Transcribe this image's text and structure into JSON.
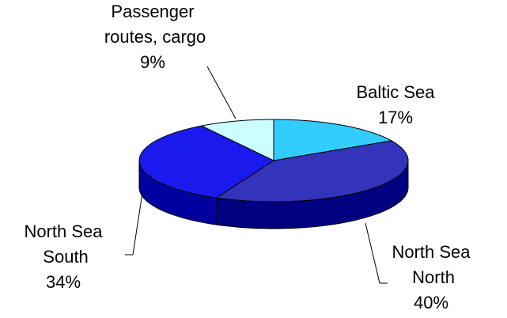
{
  "chart_data": {
    "type": "pie3d",
    "categories": [
      "Baltic Sea",
      "North Sea North",
      "North Sea South",
      "Passenger routes, cargo"
    ],
    "values": [
      17,
      40,
      34,
      9
    ],
    "value_labels": [
      "17%",
      "40%",
      "34%",
      "9%"
    ],
    "colors": [
      "#33ccff",
      "#3333bb",
      "#1a1aee",
      "#ccffff"
    ],
    "side_colors": [
      "#1a99cc",
      "#000080",
      "#0000a0",
      "#99cccc"
    ]
  }
}
